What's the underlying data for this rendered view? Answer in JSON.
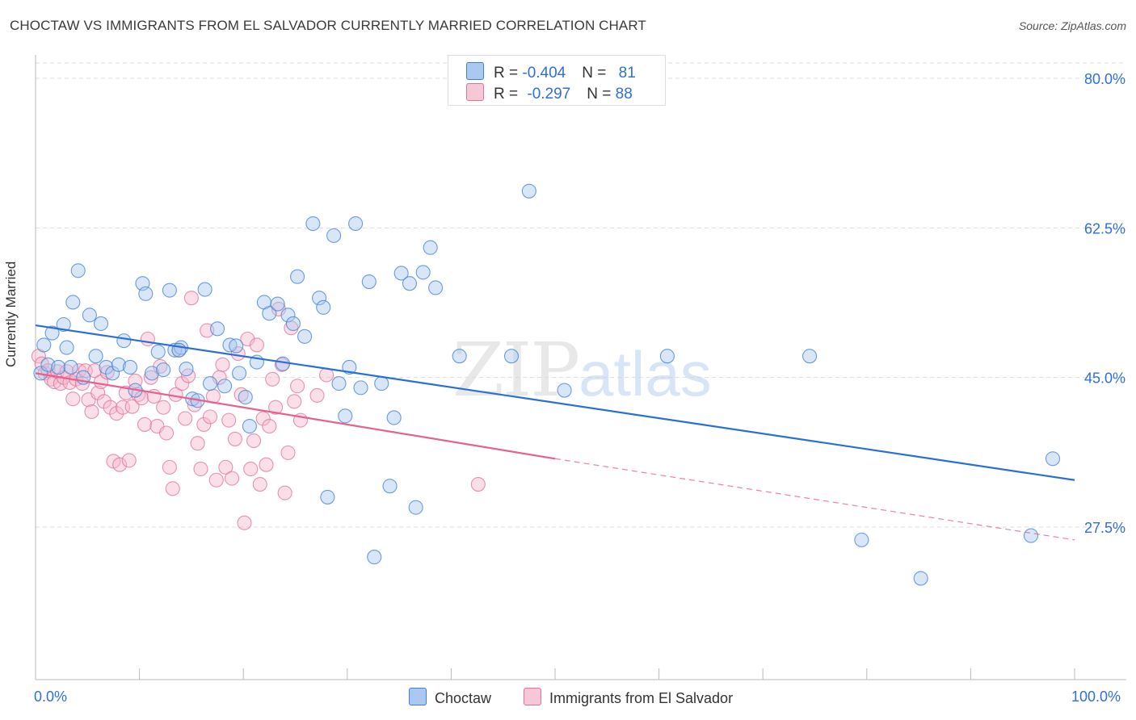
{
  "header": {
    "title": "CHOCTAW VS IMMIGRANTS FROM EL SALVADOR CURRENTLY MARRIED CORRELATION CHART",
    "source": "Source: ZipAtlas.com"
  },
  "watermark": {
    "zip": "ZIP",
    "atlas": "atlas"
  },
  "legend_top": {
    "rows": [
      {
        "r_label": "R = ",
        "r_value": "-0.404",
        "n_label": "N = ",
        "n_value": "81"
      },
      {
        "r_label": "R = ",
        "r_value": "-0.297",
        "n_label": "N = ",
        "n_value": "88"
      }
    ]
  },
  "legend_bottom": {
    "items": [
      "Choctaw",
      "Immigrants from El Salvador"
    ]
  },
  "x_axis_labels": {
    "left": "0.0%",
    "right": "100.0%"
  },
  "colors": {
    "choctaw_fill": "#aac8f0",
    "choctaw_stroke": "#3a7fd5",
    "choctaw_line": "#2a6fd6",
    "salvador_fill": "#f6b8cb",
    "salvador_stroke": "#e0709a",
    "salvador_line": "#e8608c",
    "tick_label": "#2f6fd8",
    "grid": "#dddddd"
  },
  "chart_data": {
    "type": "scatter",
    "title": "CHOCTAW VS IMMIGRANTS FROM EL SALVADOR CURRENTLY MARRIED CORRELATION CHART",
    "xlabel": "",
    "ylabel": "Currently Married",
    "xlim": [
      0,
      100
    ],
    "ylim": [
      10,
      80
    ],
    "y_ticks": [
      27.5,
      45.0,
      62.5,
      80.0
    ],
    "y_tick_labels": [
      "27.5%",
      "45.0%",
      "62.5%",
      "80.0%"
    ],
    "grid": true,
    "legend_position": "top-center",
    "series": [
      {
        "name": "Choctaw",
        "R": -0.404,
        "N": 81,
        "trend": {
          "x": [
            0,
            100
          ],
          "y": [
            51.1,
            33.0
          ]
        },
        "points": [
          [
            0.5,
            45.5
          ],
          [
            0.8,
            48.8
          ],
          [
            1.2,
            46.5
          ],
          [
            1.6,
            50.2
          ],
          [
            2.2,
            46.2
          ],
          [
            2.7,
            51.2
          ],
          [
            3.0,
            48.5
          ],
          [
            3.6,
            53.8
          ],
          [
            4.1,
            57.5
          ],
          [
            4.6,
            45.0
          ],
          [
            5.2,
            52.3
          ],
          [
            5.8,
            47.5
          ],
          [
            6.3,
            51.3
          ],
          [
            6.8,
            46.2
          ],
          [
            7.4,
            45.5
          ],
          [
            8.0,
            46.5
          ],
          [
            8.5,
            49.3
          ],
          [
            9.1,
            46.2
          ],
          [
            9.6,
            43.5
          ],
          [
            10.3,
            56.0
          ],
          [
            10.6,
            54.8
          ],
          [
            11.2,
            45.5
          ],
          [
            11.8,
            48.0
          ],
          [
            12.3,
            45.9
          ],
          [
            12.9,
            55.2
          ],
          [
            13.4,
            48.2
          ],
          [
            14.0,
            48.5
          ],
          [
            14.5,
            46.0
          ],
          [
            15.1,
            42.5
          ],
          [
            15.6,
            42.3
          ],
          [
            16.3,
            55.3
          ],
          [
            16.8,
            44.3
          ],
          [
            17.5,
            50.7
          ],
          [
            18.2,
            44.0
          ],
          [
            18.7,
            48.8
          ],
          [
            19.3,
            48.7
          ],
          [
            19.6,
            45.5
          ],
          [
            20.2,
            42.7
          ],
          [
            20.6,
            39.3
          ],
          [
            21.3,
            46.8
          ],
          [
            22.0,
            53.8
          ],
          [
            22.5,
            52.5
          ],
          [
            23.3,
            53.6
          ],
          [
            23.8,
            46.6
          ],
          [
            24.3,
            52.3
          ],
          [
            24.8,
            51.3
          ],
          [
            25.2,
            56.8
          ],
          [
            25.9,
            49.8
          ],
          [
            26.7,
            63.0
          ],
          [
            27.3,
            54.3
          ],
          [
            27.7,
            53.2
          ],
          [
            28.1,
            31.0
          ],
          [
            28.7,
            61.6
          ],
          [
            29.2,
            44.3
          ],
          [
            29.8,
            40.5
          ],
          [
            30.2,
            46.2
          ],
          [
            30.8,
            63.0
          ],
          [
            31.3,
            43.8
          ],
          [
            32.1,
            56.2
          ],
          [
            32.6,
            24.0
          ],
          [
            33.3,
            44.3
          ],
          [
            34.1,
            32.3
          ],
          [
            34.5,
            40.3
          ],
          [
            35.2,
            57.2
          ],
          [
            36.0,
            56.0
          ],
          [
            36.6,
            29.8
          ],
          [
            37.3,
            57.3
          ],
          [
            38.0,
            60.2
          ],
          [
            38.5,
            55.5
          ],
          [
            40.8,
            47.5
          ],
          [
            45.8,
            47.5
          ],
          [
            47.5,
            66.8
          ],
          [
            50.9,
            43.5
          ],
          [
            60.8,
            47.5
          ],
          [
            74.5,
            47.5
          ],
          [
            79.5,
            26.0
          ],
          [
            85.2,
            21.5
          ],
          [
            95.8,
            26.5
          ],
          [
            97.9,
            35.5
          ],
          [
            3.4,
            46.2
          ],
          [
            13.8,
            48.2
          ]
        ]
      },
      {
        "name": "Immigrants from El Salvador",
        "R": -0.297,
        "N": 88,
        "trend_solid": {
          "x": [
            0,
            50
          ],
          "y": [
            45.5,
            35.5
          ]
        },
        "trend_dashed": {
          "x": [
            50,
            100
          ],
          "y": [
            35.5,
            26.0
          ]
        },
        "points": [
          [
            0.3,
            47.5
          ],
          [
            0.6,
            46.6
          ],
          [
            0.9,
            45.5
          ],
          [
            1.2,
            45.8
          ],
          [
            1.5,
            44.8
          ],
          [
            1.8,
            44.5
          ],
          [
            2.1,
            45.7
          ],
          [
            2.4,
            44.3
          ],
          [
            2.7,
            45.0
          ],
          [
            3.0,
            45.7
          ],
          [
            3.3,
            44.4
          ],
          [
            3.6,
            42.5
          ],
          [
            3.9,
            44.8
          ],
          [
            4.2,
            45.8
          ],
          [
            4.5,
            44.3
          ],
          [
            4.8,
            45.8
          ],
          [
            5.1,
            42.4
          ],
          [
            5.4,
            41.0
          ],
          [
            5.7,
            45.8
          ],
          [
            6.0,
            43.2
          ],
          [
            6.3,
            44.5
          ],
          [
            6.6,
            42.2
          ],
          [
            6.9,
            45.6
          ],
          [
            7.2,
            41.5
          ],
          [
            7.5,
            35.2
          ],
          [
            7.8,
            40.8
          ],
          [
            8.1,
            34.8
          ],
          [
            8.4,
            41.5
          ],
          [
            8.7,
            43.2
          ],
          [
            9.0,
            35.3
          ],
          [
            9.3,
            41.6
          ],
          [
            9.6,
            44.6
          ],
          [
            9.9,
            43.0
          ],
          [
            10.2,
            42.6
          ],
          [
            10.5,
            39.5
          ],
          [
            10.8,
            49.5
          ],
          [
            11.1,
            45.0
          ],
          [
            11.4,
            42.8
          ],
          [
            11.7,
            39.3
          ],
          [
            12.0,
            46.3
          ],
          [
            12.3,
            41.5
          ],
          [
            12.6,
            38.5
          ],
          [
            12.9,
            34.5
          ],
          [
            13.2,
            32.0
          ],
          [
            13.5,
            43.0
          ],
          [
            13.8,
            48.2
          ],
          [
            14.1,
            44.3
          ],
          [
            14.4,
            40.2
          ],
          [
            14.7,
            45.2
          ],
          [
            15.0,
            54.3
          ],
          [
            15.3,
            41.8
          ],
          [
            15.6,
            37.3
          ],
          [
            15.9,
            34.3
          ],
          [
            16.2,
            39.5
          ],
          [
            16.5,
            50.5
          ],
          [
            16.8,
            40.4
          ],
          [
            17.1,
            42.8
          ],
          [
            17.4,
            33.0
          ],
          [
            17.7,
            45.0
          ],
          [
            18.0,
            46.5
          ],
          [
            18.3,
            34.5
          ],
          [
            18.6,
            40.0
          ],
          [
            18.9,
            33.2
          ],
          [
            19.2,
            37.8
          ],
          [
            19.5,
            47.8
          ],
          [
            19.8,
            43.0
          ],
          [
            20.1,
            28.0
          ],
          [
            20.4,
            49.5
          ],
          [
            20.7,
            34.3
          ],
          [
            21.0,
            37.6
          ],
          [
            21.3,
            48.8
          ],
          [
            21.6,
            32.5
          ],
          [
            21.9,
            40.2
          ],
          [
            22.2,
            34.8
          ],
          [
            22.5,
            39.3
          ],
          [
            22.8,
            44.8
          ],
          [
            23.1,
            41.5
          ],
          [
            23.4,
            53.0
          ],
          [
            23.7,
            46.5
          ],
          [
            24.0,
            31.5
          ],
          [
            24.3,
            36.2
          ],
          [
            24.6,
            50.8
          ],
          [
            24.9,
            42.2
          ],
          [
            25.2,
            44.0
          ],
          [
            25.5,
            40.0
          ],
          [
            27.1,
            42.9
          ],
          [
            28.0,
            45.3
          ],
          [
            42.6,
            32.5
          ]
        ]
      }
    ]
  }
}
